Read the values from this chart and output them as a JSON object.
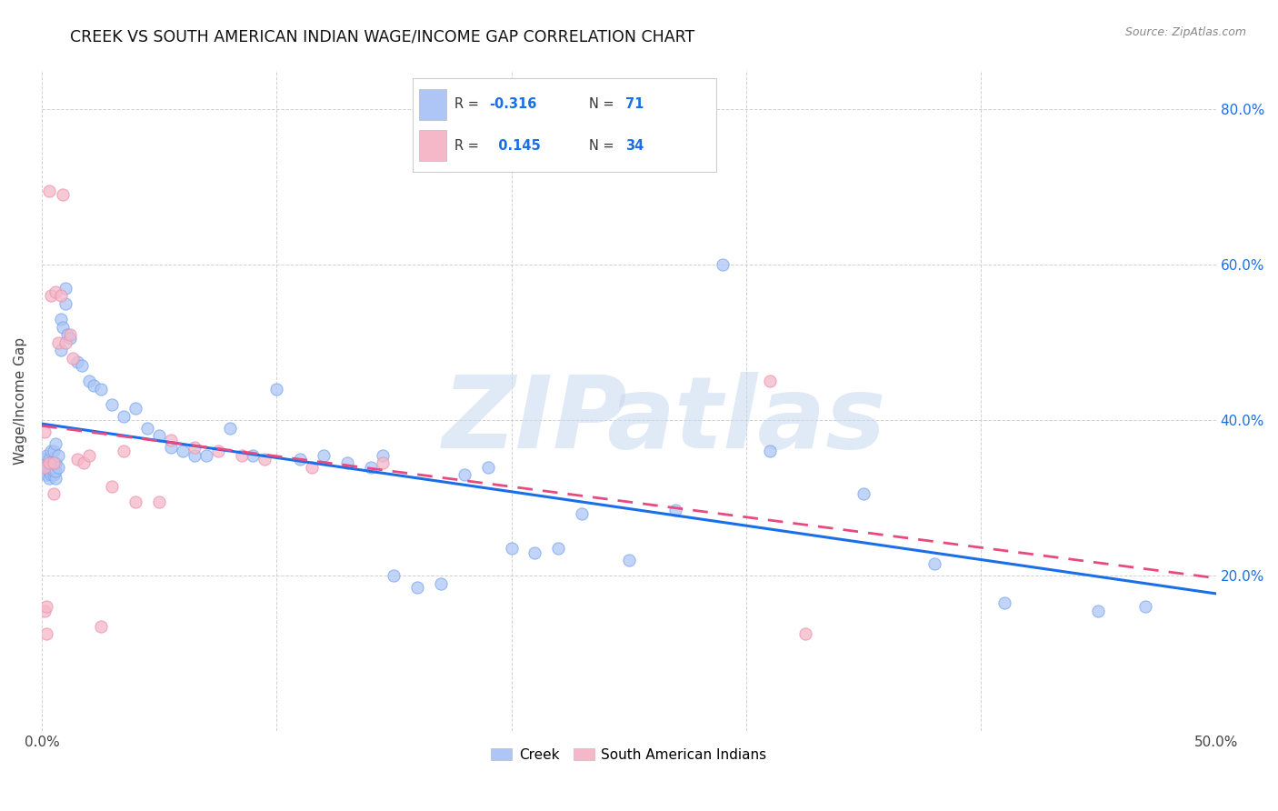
{
  "title": "CREEK VS SOUTH AMERICAN INDIAN WAGE/INCOME GAP CORRELATION CHART",
  "source": "Source: ZipAtlas.com",
  "ylabel": "Wage/Income Gap",
  "xlim": [
    0.0,
    0.5
  ],
  "ylim": [
    0.0,
    0.85
  ],
  "creek_color": "#aec6f5",
  "creek_edge_color": "#7aa8f0",
  "south_american_color": "#f5b8c8",
  "south_american_edge_color": "#f090b0",
  "creek_line_color": "#1a6fe8",
  "south_american_line_color": "#e84a7f",
  "R_creek": "-0.316",
  "N_creek": "71",
  "R_south": "0.145",
  "N_south": "34",
  "watermark_color": "#c8d8f0",
  "right_axis_color": "#1a6fe8",
  "creek_x": [
    0.001,
    0.001,
    0.001,
    0.002,
    0.002,
    0.002,
    0.003,
    0.003,
    0.003,
    0.003,
    0.004,
    0.004,
    0.004,
    0.004,
    0.005,
    0.005,
    0.005,
    0.005,
    0.006,
    0.006,
    0.006,
    0.006,
    0.007,
    0.007,
    0.008,
    0.008,
    0.009,
    0.01,
    0.01,
    0.011,
    0.012,
    0.015,
    0.017,
    0.02,
    0.022,
    0.025,
    0.03,
    0.035,
    0.04,
    0.045,
    0.05,
    0.055,
    0.06,
    0.065,
    0.07,
    0.08,
    0.09,
    0.1,
    0.11,
    0.12,
    0.13,
    0.14,
    0.145,
    0.15,
    0.16,
    0.17,
    0.18,
    0.19,
    0.2,
    0.21,
    0.22,
    0.23,
    0.25,
    0.27,
    0.29,
    0.31,
    0.35,
    0.38,
    0.41,
    0.45,
    0.47
  ],
  "creek_y": [
    0.335,
    0.34,
    0.35,
    0.33,
    0.34,
    0.355,
    0.325,
    0.335,
    0.34,
    0.35,
    0.33,
    0.34,
    0.345,
    0.36,
    0.33,
    0.335,
    0.345,
    0.36,
    0.325,
    0.335,
    0.345,
    0.37,
    0.34,
    0.355,
    0.49,
    0.53,
    0.52,
    0.55,
    0.57,
    0.51,
    0.505,
    0.475,
    0.47,
    0.45,
    0.445,
    0.44,
    0.42,
    0.405,
    0.415,
    0.39,
    0.38,
    0.365,
    0.36,
    0.355,
    0.355,
    0.39,
    0.355,
    0.44,
    0.35,
    0.355,
    0.345,
    0.34,
    0.355,
    0.2,
    0.185,
    0.19,
    0.33,
    0.34,
    0.235,
    0.23,
    0.235,
    0.28,
    0.22,
    0.285,
    0.6,
    0.36,
    0.305,
    0.215,
    0.165,
    0.155,
    0.16
  ],
  "south_x": [
    0.001,
    0.001,
    0.001,
    0.002,
    0.002,
    0.003,
    0.003,
    0.004,
    0.005,
    0.005,
    0.006,
    0.007,
    0.008,
    0.009,
    0.01,
    0.012,
    0.013,
    0.015,
    0.018,
    0.02,
    0.025,
    0.03,
    0.035,
    0.04,
    0.05,
    0.055,
    0.065,
    0.075,
    0.085,
    0.095,
    0.115,
    0.145,
    0.31,
    0.325
  ],
  "south_y": [
    0.385,
    0.34,
    0.155,
    0.125,
    0.16,
    0.345,
    0.695,
    0.56,
    0.305,
    0.345,
    0.565,
    0.5,
    0.56,
    0.69,
    0.5,
    0.51,
    0.48,
    0.35,
    0.345,
    0.355,
    0.135,
    0.315,
    0.36,
    0.295,
    0.295,
    0.375,
    0.365,
    0.36,
    0.355,
    0.35,
    0.34,
    0.345,
    0.45,
    0.125
  ]
}
